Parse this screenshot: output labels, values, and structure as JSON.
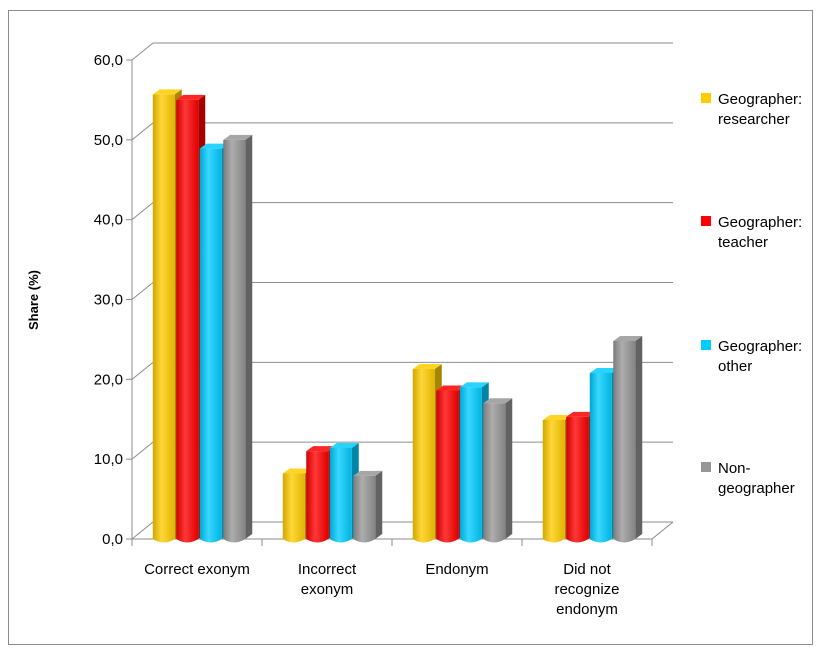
{
  "chart_data": {
    "type": "bar",
    "title": "",
    "xlabel": "",
    "ylabel": "Share (%)",
    "ylim": [
      0,
      60
    ],
    "yticks": [
      "0,0",
      "10,0",
      "20,0",
      "30,0",
      "40,0",
      "50,0",
      "60,0"
    ],
    "grid": true,
    "legend_position": "right",
    "categories": [
      [
        "Correct exonym"
      ],
      [
        "Incorrect",
        "exonym"
      ],
      [
        "Endonym"
      ],
      [
        "Did not",
        "recognize",
        "endonym"
      ]
    ],
    "series": [
      {
        "name": [
          "Geographer:",
          "researcher"
        ],
        "color": "#ffcc00",
        "values": [
          55.7,
          8.2,
          21.3,
          14.9
        ]
      },
      {
        "name": [
          "Geographer:",
          "teacher"
        ],
        "color": "#ff0000",
        "values": [
          55.0,
          11.0,
          18.6,
          15.3
        ]
      },
      {
        "name": [
          "Geographer:",
          "other"
        ],
        "color": "#00ccff",
        "values": [
          48.9,
          11.4,
          19.0,
          20.8
        ]
      },
      {
        "name": [
          "Non-",
          "geographer"
        ],
        "color": "#969696",
        "values": [
          50.0,
          7.9,
          17.0,
          24.8
        ]
      }
    ]
  }
}
